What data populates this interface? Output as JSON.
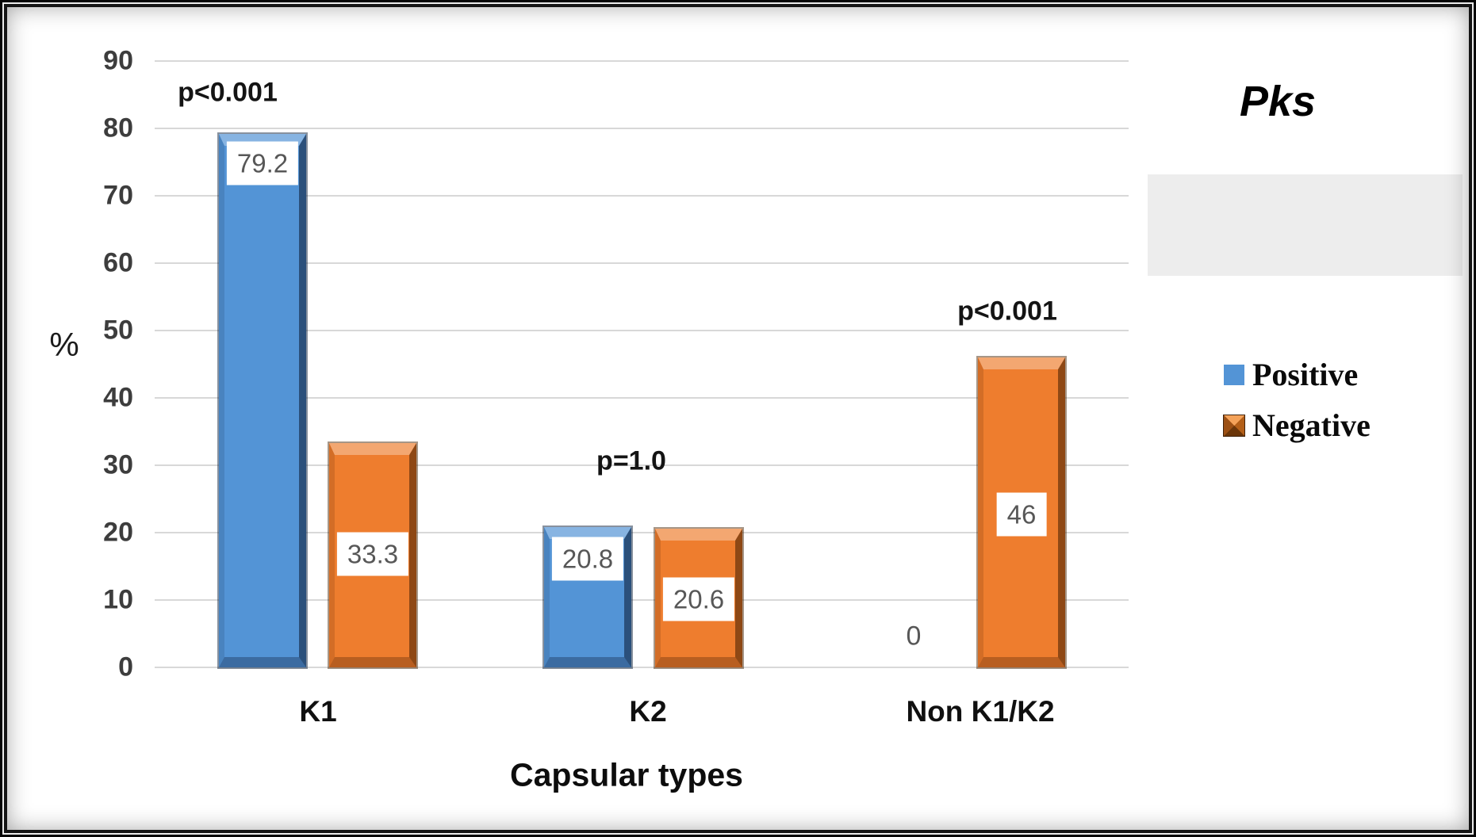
{
  "chart_data": {
    "type": "bar",
    "categories": [
      "K1",
      "K2",
      "Non K1/K2"
    ],
    "series": [
      {
        "name": "Positive",
        "color": "#5394D6",
        "values": [
          79.2,
          20.8,
          0
        ]
      },
      {
        "name": "Negative",
        "color": "#EE7D2E",
        "values": [
          33.3,
          20.6,
          46
        ]
      }
    ],
    "data_labels": {
      "Positive": [
        "79.2",
        "20.8",
        "0"
      ],
      "Negative": [
        "33.3",
        "20.6",
        "46"
      ]
    },
    "annotations": [
      {
        "category": "K1",
        "text": "p<0.001"
      },
      {
        "category": "K2",
        "text": "p=1.0"
      },
      {
        "category": "Non K1/K2",
        "text": "p<0.001"
      }
    ],
    "legend_title": "Pks",
    "ylabel": "%",
    "xlabel": "Capsular types",
    "yticks": [
      0,
      10,
      20,
      30,
      40,
      50,
      60,
      70,
      80,
      90
    ],
    "ylim": [
      0,
      90
    ],
    "grid": true,
    "legend_position": "right",
    "gridline_color": "#D8D8D8",
    "label_text_color": "#575757"
  }
}
